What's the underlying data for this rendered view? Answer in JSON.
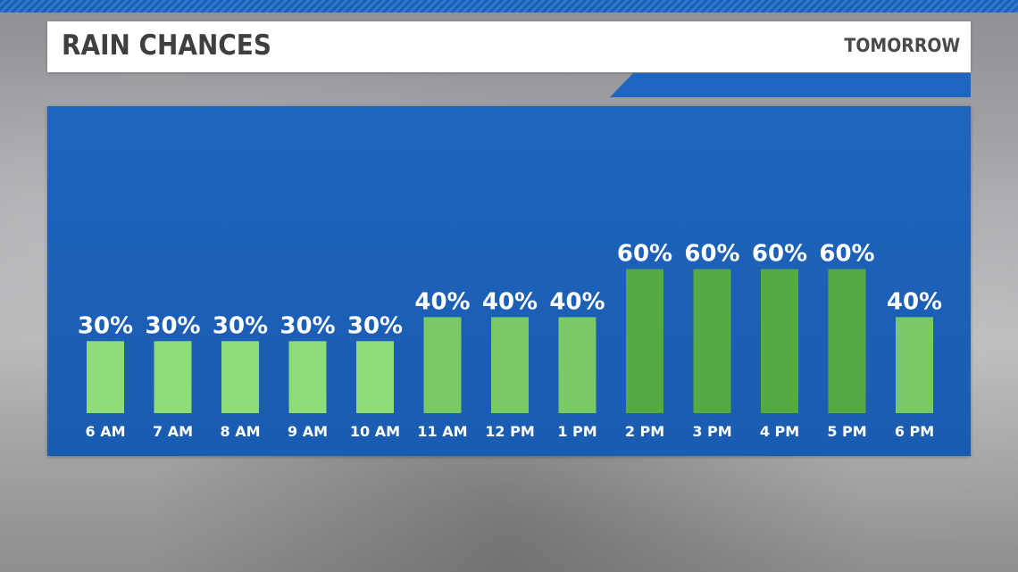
{
  "header": {
    "title": "RAIN CHANCES",
    "subtitle": "TOMORROW"
  },
  "colors": {
    "panel": "#1e64bd",
    "bar_low": "#8ddc78",
    "bar_mid": "#79c965",
    "bar_high": "#56aa46"
  },
  "chart_data": {
    "type": "bar",
    "title": "RAIN CHANCES",
    "subtitle": "TOMORROW",
    "categories": [
      "6 AM",
      "7 AM",
      "8 AM",
      "9 AM",
      "10 AM",
      "11 AM",
      "12 PM",
      "1 PM",
      "2 PM",
      "3 PM",
      "4 PM",
      "5 PM",
      "6 PM"
    ],
    "values": [
      30,
      30,
      30,
      30,
      30,
      40,
      40,
      40,
      60,
      60,
      60,
      60,
      40
    ],
    "value_labels": [
      "30%",
      "30%",
      "30%",
      "30%",
      "30%",
      "40%",
      "40%",
      "40%",
      "60%",
      "60%",
      "60%",
      "60%",
      "40%"
    ],
    "unit": "%",
    "ylim": [
      0,
      100
    ],
    "grid": false,
    "legend": "none"
  }
}
